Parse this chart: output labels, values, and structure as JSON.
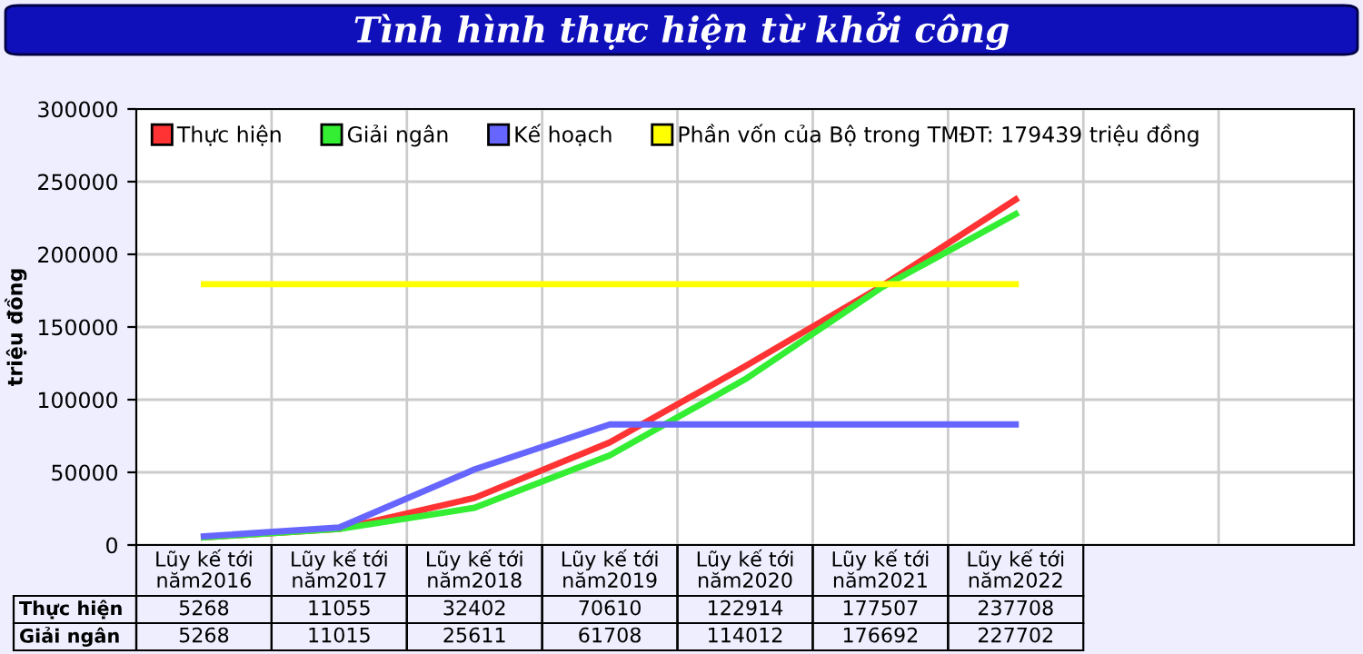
{
  "chart_data": {
    "type": "line",
    "title": "Tình hình thực hiện từ khởi công",
    "ylabel": "triệu đồng",
    "categories": [
      "Lũy kế tới\nnăm2016",
      "Lũy kế tới\nnăm2017",
      "Lũy kế tới\nnăm2018",
      "Lũy kế tới\nnăm2019",
      "Lũy kế tới\nnăm2020",
      "Lũy kế tới\nnăm2021",
      "Lũy kế tới\nnăm2022",
      null,
      null
    ],
    "series": [
      {
        "name": "Thực hiện",
        "color": "#ff3333",
        "values": [
          5268,
          11055,
          32402,
          70610,
          122914,
          177507,
          237708,
          null,
          null
        ],
        "value_labels": [
          "5268",
          "11055",
          "32402",
          "70610",
          "122914",
          "177507",
          "237708",
          null,
          null
        ]
      },
      {
        "name": "Giải ngân",
        "color": "#33ee33",
        "values": [
          5268,
          11015,
          25611,
          61708,
          114012,
          176692,
          227702,
          null,
          null
        ],
        "value_labels": [
          "5268",
          "11015",
          "25611",
          "61708",
          "114012",
          "176692",
          "227702",
          null,
          null
        ]
      },
      {
        "name": "Kế hoạch",
        "color": "#6666ff",
        "values": [
          6000,
          12000,
          52000,
          83000,
          83000,
          83000,
          83000,
          null,
          null
        ]
      },
      {
        "name": "Phần vốn của Bộ trong TMĐT: 179439 triệu đồng",
        "color": "#ffff00",
        "values": [
          179439,
          179439,
          179439,
          179439,
          179439,
          179439,
          179439,
          null,
          null
        ]
      }
    ],
    "ylim": [
      0,
      300000
    ],
    "yticks": [
      0,
      50000,
      100000,
      150000,
      200000,
      250000,
      300000
    ],
    "grid": true,
    "legend": "top left",
    "line_style": "solid",
    "marker": "none"
  }
}
